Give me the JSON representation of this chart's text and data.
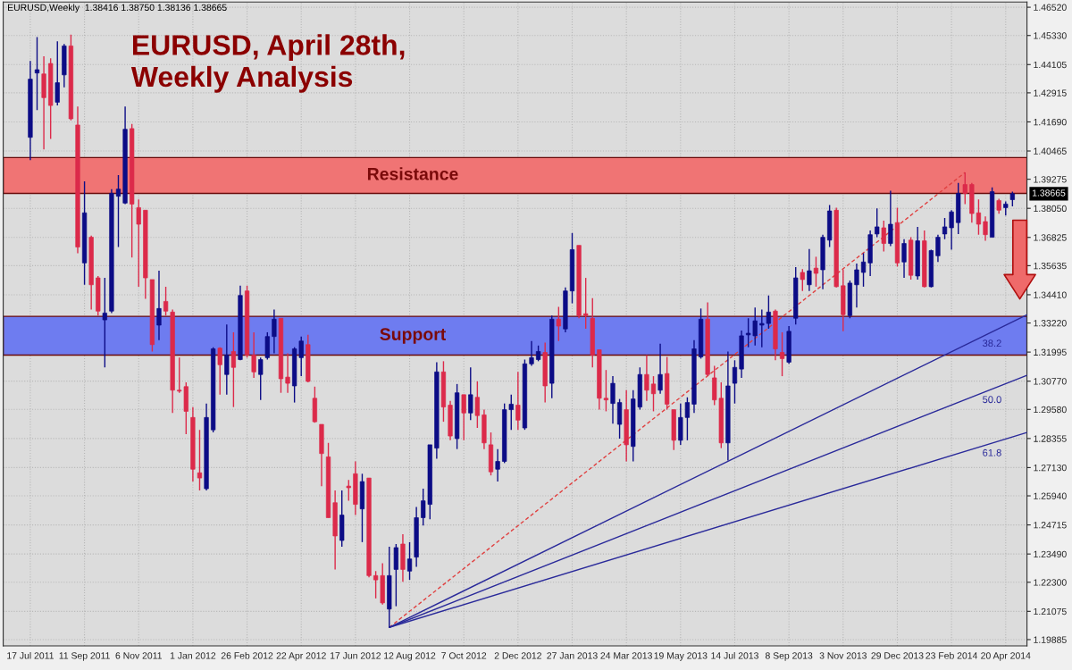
{
  "chart_data": {
    "type": "candlestick",
    "title": "EURUSD, April 28th,\nWeekly Analysis",
    "annotations": [
      "EURUSD,Weekly  1.38416 1.38750 1.38136 1.38665",
      "1.38665"
    ],
    "x": [
      "2011-07-17",
      "2011-07-24",
      "2011-07-31",
      "2011-08-07",
      "2011-08-14",
      "2011-08-21",
      "2011-08-28",
      "2011-09-04",
      "2011-09-11",
      "2011-09-18",
      "2011-09-25",
      "2011-10-02",
      "2011-10-09",
      "2011-10-16",
      "2011-10-23",
      "2011-10-30",
      "2011-11-06",
      "2011-11-13",
      "2011-11-20",
      "2011-11-27",
      "2011-12-04",
      "2011-12-11",
      "2011-12-18",
      "2011-12-25",
      "2012-01-01",
      "2012-01-08",
      "2012-01-15",
      "2012-01-22",
      "2012-01-29",
      "2012-02-05",
      "2012-02-12",
      "2012-02-19",
      "2012-02-26",
      "2012-03-04",
      "2012-03-11",
      "2012-03-18",
      "2012-03-25",
      "2012-04-01",
      "2012-04-08",
      "2012-04-15",
      "2012-04-22",
      "2012-04-29",
      "2012-05-06",
      "2012-05-13",
      "2012-05-20",
      "2012-05-27",
      "2012-06-03",
      "2012-06-10",
      "2012-06-17",
      "2012-06-24",
      "2012-07-01",
      "2012-07-08",
      "2012-07-15",
      "2012-07-22",
      "2012-07-29",
      "2012-08-05",
      "2012-08-12",
      "2012-08-19",
      "2012-08-26",
      "2012-09-02",
      "2012-09-09",
      "2012-09-16",
      "2012-09-23",
      "2012-09-30",
      "2012-10-07",
      "2012-10-14",
      "2012-10-21",
      "2012-10-28",
      "2012-11-04",
      "2012-11-11",
      "2012-11-18",
      "2012-11-25",
      "2012-12-02",
      "2012-12-09",
      "2012-12-16",
      "2012-12-23",
      "2012-12-30",
      "2013-01-06",
      "2013-01-13",
      "2013-01-20",
      "2013-01-27",
      "2013-02-03",
      "2013-02-10",
      "2013-02-17",
      "2013-02-24",
      "2013-03-03",
      "2013-03-10",
      "2013-03-17",
      "2013-03-24",
      "2013-03-31",
      "2013-04-07",
      "2013-04-14",
      "2013-04-21",
      "2013-04-28",
      "2013-05-05",
      "2013-05-12",
      "2013-05-19",
      "2013-05-26",
      "2013-06-02",
      "2013-06-09",
      "2013-06-16",
      "2013-06-23",
      "2013-06-30",
      "2013-07-07",
      "2013-07-14",
      "2013-07-21",
      "2013-07-28",
      "2013-08-04",
      "2013-08-11",
      "2013-08-18",
      "2013-08-25",
      "2013-09-01",
      "2013-09-08",
      "2013-09-15",
      "2013-09-22",
      "2013-09-29",
      "2013-10-06",
      "2013-10-13",
      "2013-10-20",
      "2013-10-27",
      "2013-11-03",
      "2013-11-10",
      "2013-11-17",
      "2013-11-24",
      "2013-12-01",
      "2013-12-08",
      "2013-12-15",
      "2013-12-22",
      "2013-12-29",
      "2014-01-05",
      "2014-01-12",
      "2014-01-19",
      "2014-01-26",
      "2014-02-02",
      "2014-02-09",
      "2014-02-16",
      "2014-02-23",
      "2014-03-02",
      "2014-03-09",
      "2014-03-16",
      "2014-03-23",
      "2014-03-30",
      "2014-04-06",
      "2014-04-13",
      "2014-04-20",
      "2014-04-27"
    ],
    "ohlc": [
      [
        1.4104,
        1.4426,
        1.4008,
        1.4349
      ],
      [
        1.4375,
        1.4526,
        1.4219,
        1.4389
      ],
      [
        1.4371,
        1.4445,
        1.4053,
        1.4271
      ],
      [
        1.4415,
        1.4437,
        1.4097,
        1.4238
      ],
      [
        1.4252,
        1.4508,
        1.4238,
        1.4334
      ],
      [
        1.4367,
        1.4497,
        1.4315,
        1.4489
      ],
      [
        1.4489,
        1.4537,
        1.4175,
        1.4182
      ],
      [
        1.4156,
        1.4234,
        1.3616,
        1.3642
      ],
      [
        1.3575,
        1.3919,
        1.3483,
        1.3786
      ],
      [
        1.3683,
        1.369,
        1.3379,
        1.3483
      ],
      [
        1.3512,
        1.352,
        1.3353,
        1.3372
      ],
      [
        1.3335,
        1.3512,
        1.3135,
        1.3364
      ],
      [
        1.3372,
        1.3886,
        1.3364,
        1.3868
      ],
      [
        1.3856,
        1.3945,
        1.3642,
        1.3886
      ],
      [
        1.3827,
        1.4234,
        1.3823,
        1.4138
      ],
      [
        1.4141,
        1.416,
        1.3598,
        1.3823
      ],
      [
        1.3808,
        1.3842,
        1.3475,
        1.3738
      ],
      [
        1.3797,
        1.3797,
        1.3424,
        1.3512
      ],
      [
        1.3505,
        1.3505,
        1.3202,
        1.3231
      ],
      [
        1.3313,
        1.3542,
        1.325,
        1.3383
      ],
      [
        1.3413,
        1.3475,
        1.3353,
        1.3372
      ],
      [
        1.3368,
        1.3379,
        1.2943,
        1.3039
      ],
      [
        1.3039,
        1.3176,
        1.3028,
        1.3035
      ],
      [
        1.3054,
        1.3072,
        1.2854,
        1.295
      ],
      [
        1.2924,
        1.2968,
        1.2654,
        1.2706
      ],
      [
        1.2691,
        1.2872,
        1.2617,
        1.2669
      ],
      [
        1.2624,
        1.2983,
        1.2617,
        1.2924
      ],
      [
        1.2872,
        1.322,
        1.2861,
        1.3213
      ],
      [
        1.3216,
        1.322,
        1.302,
        1.3146
      ],
      [
        1.3105,
        1.3316,
        1.302,
        1.3187
      ],
      [
        1.3202,
        1.3283,
        1.2968,
        1.3135
      ],
      [
        1.3168,
        1.3479,
        1.3165,
        1.3438
      ],
      [
        1.3457,
        1.3479,
        1.3176,
        1.3187
      ],
      [
        1.3187,
        1.3283,
        1.3091,
        1.3116
      ],
      [
        1.3105,
        1.3176,
        1.2998,
        1.3168
      ],
      [
        1.3176,
        1.3283,
        1.3168,
        1.3265
      ],
      [
        1.3265,
        1.3379,
        1.3194,
        1.3338
      ],
      [
        1.3342,
        1.3342,
        1.3028,
        1.3087
      ],
      [
        1.3094,
        1.3194,
        1.3028,
        1.3068
      ],
      [
        1.3057,
        1.322,
        1.2987,
        1.3213
      ],
      [
        1.3176,
        1.3265,
        1.3098,
        1.3246
      ],
      [
        1.3231,
        1.3272,
        1.3072,
        1.3076
      ],
      [
        1.3005,
        1.3054,
        1.2902,
        1.2906
      ],
      [
        1.2895,
        1.2895,
        1.2635,
        1.2772
      ],
      [
        1.2758,
        1.2817,
        1.2502,
        1.2502
      ],
      [
        1.2565,
        1.2617,
        1.2284,
        1.2425
      ],
      [
        1.2406,
        1.2617,
        1.238,
        1.2513
      ],
      [
        1.2635,
        1.2661,
        1.2573,
        1.2628
      ],
      [
        1.2687,
        1.2739,
        1.2513,
        1.2558
      ],
      [
        1.2539,
        1.2687,
        1.2399,
        1.2654
      ],
      [
        1.2669,
        1.2669,
        1.2251,
        1.2258
      ],
      [
        1.2258,
        1.2277,
        1.2162,
        1.224
      ],
      [
        1.2258,
        1.231,
        1.2136,
        1.2143
      ],
      [
        1.2117,
        1.238,
        1.204,
        1.2258
      ],
      [
        1.2284,
        1.2391,
        1.2129,
        1.2376
      ],
      [
        1.2391,
        1.2432,
        1.2232,
        1.2284
      ],
      [
        1.2277,
        1.2399,
        1.224,
        1.2328
      ],
      [
        1.2336,
        1.2547,
        1.2295,
        1.2502
      ],
      [
        1.2502,
        1.2624,
        1.2469,
        1.2573
      ],
      [
        1.2558,
        1.2809,
        1.2495,
        1.2809
      ],
      [
        1.2795,
        1.3157,
        1.275,
        1.3116
      ],
      [
        1.3116,
        1.3161,
        1.2906,
        1.2968
      ],
      [
        1.2976,
        1.2994,
        1.2828,
        1.2846
      ],
      [
        1.2835,
        1.3065,
        1.2791,
        1.3028
      ],
      [
        1.302,
        1.302,
        1.2828,
        1.2943
      ],
      [
        1.2943,
        1.3135,
        1.2913,
        1.302
      ],
      [
        1.3009,
        1.3076,
        1.288,
        1.2932
      ],
      [
        1.2935,
        1.2957,
        1.2791,
        1.2817
      ],
      [
        1.2809,
        1.2861,
        1.268,
        1.2695
      ],
      [
        1.2706,
        1.2791,
        1.2654,
        1.2739
      ],
      [
        1.2739,
        1.2983,
        1.2732,
        1.2957
      ],
      [
        1.2957,
        1.302,
        1.2872,
        1.298
      ],
      [
        1.2976,
        1.3116,
        1.2872,
        1.2913
      ],
      [
        1.288,
        1.3168,
        1.2872,
        1.315
      ],
      [
        1.315,
        1.3246,
        1.3142,
        1.3176
      ],
      [
        1.3168,
        1.3227,
        1.3161,
        1.3202
      ],
      [
        1.3198,
        1.3239,
        1.2987,
        1.3057
      ],
      [
        1.3068,
        1.3353,
        1.3005,
        1.3338
      ],
      [
        1.3338,
        1.339,
        1.3246,
        1.3309
      ],
      [
        1.3297,
        1.3472,
        1.3283,
        1.3457
      ],
      [
        1.3457,
        1.3701,
        1.3405,
        1.3631
      ],
      [
        1.3649,
        1.3649,
        1.3342,
        1.3353
      ],
      [
        1.3361,
        1.3512,
        1.3298,
        1.3353
      ],
      [
        1.3342,
        1.3427,
        1.3135,
        1.3187
      ],
      [
        1.3209,
        1.3209,
        1.2957,
        1.3005
      ],
      [
        1.3005,
        1.3124,
        1.295,
        1.2998
      ],
      [
        1.2983,
        1.3098,
        1.2898,
        1.3068
      ],
      [
        1.2895,
        1.3002,
        1.2835,
        1.2987
      ],
      [
        1.2957,
        1.3039,
        1.2739,
        1.2809
      ],
      [
        1.2802,
        1.3039,
        1.2739,
        1.3002
      ],
      [
        1.2968,
        1.3135,
        1.2957,
        1.3105
      ],
      [
        1.3105,
        1.3187,
        1.2994,
        1.3039
      ],
      [
        1.3065,
        1.3098,
        1.295,
        1.3024
      ],
      [
        1.3039,
        1.3235,
        1.3024,
        1.3105
      ],
      [
        1.3109,
        1.3179,
        1.2957,
        1.298
      ],
      [
        1.2957,
        1.2957,
        1.2787,
        1.2828
      ],
      [
        1.2828,
        1.2983,
        1.2809,
        1.2924
      ],
      [
        1.2924,
        1.3009,
        1.2828,
        1.2987
      ],
      [
        1.298,
        1.325,
        1.2943,
        1.3213
      ],
      [
        1.3179,
        1.3383,
        1.3172,
        1.3338
      ],
      [
        1.3338,
        1.3409,
        1.3098,
        1.3105
      ],
      [
        1.3091,
        1.3142,
        1.2976,
        1.2998
      ],
      [
        1.3005,
        1.3072,
        1.2795,
        1.2817
      ],
      [
        1.2817,
        1.3202,
        1.2743,
        1.3057
      ],
      [
        1.3068,
        1.3165,
        1.2983,
        1.3135
      ],
      [
        1.3128,
        1.329,
        1.3091,
        1.3268
      ],
      [
        1.3272,
        1.3342,
        1.322,
        1.3279
      ],
      [
        1.3268,
        1.3387,
        1.3227,
        1.3331
      ],
      [
        1.3313,
        1.3379,
        1.322,
        1.332
      ],
      [
        1.332,
        1.3438,
        1.3298,
        1.3368
      ],
      [
        1.3372,
        1.3379,
        1.3165,
        1.3213
      ],
      [
        1.3198,
        1.3283,
        1.3098,
        1.3172
      ],
      [
        1.3157,
        1.3309,
        1.315,
        1.3287
      ],
      [
        1.3342,
        1.3557,
        1.3316,
        1.3512
      ],
      [
        1.3535,
        1.3549,
        1.3457,
        1.3505
      ],
      [
        1.3483,
        1.3634,
        1.3457,
        1.3542
      ],
      [
        1.3553,
        1.3601,
        1.3475,
        1.3531
      ],
      [
        1.3546,
        1.3694,
        1.3464,
        1.3683
      ],
      [
        1.3671,
        1.3819,
        1.3642,
        1.3794
      ],
      [
        1.3797,
        1.3808,
        1.3472,
        1.3475
      ],
      [
        1.3479,
        1.3546,
        1.3287,
        1.3357
      ],
      [
        1.3353,
        1.3501,
        1.3342,
        1.349
      ],
      [
        1.3483,
        1.3572,
        1.3387,
        1.3546
      ],
      [
        1.3535,
        1.3616,
        1.3475,
        1.3579
      ],
      [
        1.3575,
        1.3712,
        1.352,
        1.3694
      ],
      [
        1.3697,
        1.3805,
        1.3683,
        1.3727
      ],
      [
        1.3723,
        1.3753,
        1.3623,
        1.3657
      ],
      [
        1.3657,
        1.3879,
        1.3646,
        1.3738
      ],
      [
        1.3745,
        1.3808,
        1.356,
        1.3575
      ],
      [
        1.3579,
        1.3675,
        1.3512,
        1.3657
      ],
      [
        1.3671,
        1.3683,
        1.3505,
        1.3523
      ],
      [
        1.352,
        1.3727,
        1.3505,
        1.3668
      ],
      [
        1.3668,
        1.3712,
        1.3472,
        1.3475
      ],
      [
        1.3475,
        1.3631,
        1.3472,
        1.3627
      ],
      [
        1.3605,
        1.3694,
        1.3579,
        1.3683
      ],
      [
        1.3697,
        1.3764,
        1.3675,
        1.3727
      ],
      [
        1.3723,
        1.3797,
        1.3631,
        1.379
      ],
      [
        1.3745,
        1.3912,
        1.3697,
        1.3868
      ],
      [
        1.3905,
        1.3956,
        1.3823,
        1.3868
      ],
      [
        1.3905,
        1.3912,
        1.3745,
        1.3783
      ],
      [
        1.3786,
        1.3842,
        1.3694,
        1.3738
      ],
      [
        1.3749,
        1.3771,
        1.3668,
        1.3694
      ],
      [
        1.3683,
        1.3893,
        1.3683,
        1.3875
      ],
      [
        1.3838,
        1.3845,
        1.3782,
        1.3797
      ],
      [
        1.3808,
        1.3834,
        1.3775,
        1.3823
      ],
      [
        1.38416,
        1.3875,
        1.38136,
        1.38665
      ]
    ],
    "colors": [
      "#0c0c86",
      "#0c0c86",
      "#dc2a4a",
      "#dc2a4a",
      "#0c0c86",
      "#0c0c86",
      "#dc2a4a",
      "#dc2a4a",
      "#0c0c86",
      "#dc2a4a",
      "#dc2a4a",
      "#0c0c86",
      "#0c0c86",
      "#0c0c86",
      "#0c0c86",
      "#dc2a4a",
      "#dc2a4a",
      "#dc2a4a",
      "#dc2a4a",
      "#0c0c86",
      "#dc2a4a",
      "#dc2a4a",
      "#dc2a4a",
      "#dc2a4a",
      "#dc2a4a",
      "#dc2a4a",
      "#0c0c86",
      "#0c0c86",
      "#dc2a4a",
      "#0c0c86",
      "#dc2a4a",
      "#0c0c86",
      "#dc2a4a",
      "#dc2a4a",
      "#0c0c86",
      "#0c0c86",
      "#0c0c86",
      "#dc2a4a",
      "#dc2a4a",
      "#0c0c86",
      "#0c0c86",
      "#dc2a4a",
      "#dc2a4a",
      "#dc2a4a",
      "#dc2a4a",
      "#dc2a4a",
      "#0c0c86",
      "#dc2a4a",
      "#dc2a4a",
      "#0c0c86",
      "#dc2a4a",
      "#dc2a4a",
      "#dc2a4a",
      "#0c0c86",
      "#0c0c86",
      "#dc2a4a",
      "#0c0c86",
      "#0c0c86",
      "#0c0c86",
      "#0c0c86",
      "#0c0c86",
      "#dc2a4a",
      "#dc2a4a",
      "#0c0c86",
      "#dc2a4a",
      "#0c0c86",
      "#dc2a4a",
      "#dc2a4a",
      "#dc2a4a",
      "#0c0c86",
      "#0c0c86",
      "#0c0c86",
      "#dc2a4a",
      "#0c0c86",
      "#0c0c86",
      "#0c0c86",
      "#dc2a4a",
      "#0c0c86",
      "#dc2a4a",
      "#0c0c86",
      "#0c0c86",
      "#dc2a4a",
      "#dc2a4a",
      "#dc2a4a",
      "#dc2a4a",
      "#dc2a4a",
      "#0c0c86",
      "#0c0c86",
      "#dc2a4a",
      "#0c0c86",
      "#0c0c86",
      "#dc2a4a",
      "#dc2a4a",
      "#0c0c86",
      "#dc2a4a",
      "#dc2a4a",
      "#0c0c86",
      "#0c0c86",
      "#0c0c86",
      "#0c0c86",
      "#dc2a4a",
      "#dc2a4a",
      "#dc2a4a",
      "#0c0c86",
      "#0c0c86",
      "#0c0c86",
      "#0c0c86",
      "#0c0c86",
      "#0c0c86",
      "#0c0c86",
      "#dc2a4a",
      "#dc2a4a",
      "#0c0c86",
      "#0c0c86",
      "#dc2a4a",
      "#0c0c86",
      "#dc2a4a",
      "#0c0c86",
      "#0c0c86",
      "#dc2a4a",
      "#dc2a4a",
      "#0c0c86",
      "#0c0c86",
      "#0c0c86",
      "#0c0c86",
      "#0c0c86",
      "#dc2a4a",
      "#0c0c86",
      "#dc2a4a",
      "#0c0c86",
      "#dc2a4a",
      "#0c0c86",
      "#dc2a4a",
      "#0c0c86",
      "#0c0c86",
      "#0c0c86",
      "#0c0c86",
      "#0c0c86",
      "#dc2a4a",
      "#dc2a4a",
      "#dc2a4a",
      "#dc2a4a",
      "#0c0c86",
      "#dc2a4a",
      "#0c0c86",
      "#0c0c86"
    ],
    "series": [
      {
        "type": "line",
        "x": [
          "2012-07-22",
          "2014-03-09"
        ],
        "values": [
          1.204,
          1.3956
        ],
        "color": "#e04040",
        "line_style": "dashed"
      },
      {
        "type": "line",
        "name": "38.2",
        "x": [
          "2012-07-22",
          "2014-05-12"
        ],
        "values": [
          1.204,
          1.3357
        ],
        "color": "#2a2a9a",
        "line_style": "solid"
      },
      {
        "type": "line",
        "name": "50.0",
        "x": [
          "2012-07-22",
          "2014-05-12"
        ],
        "values": [
          1.204,
          1.3102
        ],
        "color": "#2a2a9a",
        "line_style": "solid"
      },
      {
        "type": "line",
        "name": "61.8",
        "x": [
          "2012-07-22",
          "2014-05-12"
        ],
        "values": [
          1.204,
          1.2861
        ],
        "color": "#2a2a9a",
        "line_style": "solid"
      }
    ],
    "bands": [
      {
        "axis": "y",
        "from": 1.3868,
        "to": 1.4019,
        "label": "Resistance",
        "color": "#f07474"
      },
      {
        "axis": "y",
        "from": 1.3187,
        "to": 1.335,
        "label": "Support",
        "color": "#6e7cf0"
      }
    ],
    "xlim": [
      "2011-06-19",
      "2014-05-12"
    ],
    "xticks": [
      {
        "value": "2011-07-17",
        "label": "17 Jul 2011"
      },
      {
        "value": "2011-09-11",
        "label": "11 Sep 2011"
      },
      {
        "value": "2011-11-06",
        "label": "6 Nov 2011"
      },
      {
        "value": "2012-01-01",
        "label": "1 Jan 2012"
      },
      {
        "value": "2012-02-26",
        "label": "26 Feb 2012"
      },
      {
        "value": "2012-04-22",
        "label": "22 Apr 2012"
      },
      {
        "value": "2012-06-17",
        "label": "17 Jun 2012"
      },
      {
        "value": "2012-08-12",
        "label": "12 Aug 2012"
      },
      {
        "value": "2012-10-07",
        "label": "7 Oct 2012"
      },
      {
        "value": "2012-12-02",
        "label": "2 Dec 2012"
      },
      {
        "value": "2013-01-27",
        "label": "27 Jan 2013"
      },
      {
        "value": "2013-03-24",
        "label": "24 Mar 2013"
      },
      {
        "value": "2013-05-19",
        "label": "19 May 2013"
      },
      {
        "value": "2013-07-14",
        "label": "14 Jul 2013"
      },
      {
        "value": "2013-09-08",
        "label": "8 Sep 2013"
      },
      {
        "value": "2013-11-03",
        "label": "3 Nov 2013"
      },
      {
        "value": "2013-12-29",
        "label": "29 Dec 2013"
      },
      {
        "value": "2014-02-23",
        "label": "23 Feb 2014"
      },
      {
        "value": "2014-04-20",
        "label": "20 Apr 2014"
      }
    ],
    "ylim": [
      1.1962,
      1.4674
    ],
    "yticks": [
      {
        "value": 1.4652,
        "label": "1.46520"
      },
      {
        "value": 1.4533,
        "label": "1.45330"
      },
      {
        "value": 1.44105,
        "label": "1.44105"
      },
      {
        "value": 1.42915,
        "label": "1.42915"
      },
      {
        "value": 1.4169,
        "label": "1.41690"
      },
      {
        "value": 1.40465,
        "label": "1.40465"
      },
      {
        "value": 1.39275,
        "label": "1.39275"
      },
      {
        "value": 1.3805,
        "label": "1.38050"
      },
      {
        "value": 1.36825,
        "label": "1.36825"
      },
      {
        "value": 1.35635,
        "label": "1.35635"
      },
      {
        "value": 1.3441,
        "label": "1.34410"
      },
      {
        "value": 1.3322,
        "label": "1.33220"
      },
      {
        "value": 1.31995,
        "label": "1.31995"
      },
      {
        "value": 1.3077,
        "label": "1.30770"
      },
      {
        "value": 1.2958,
        "label": "1.29580"
      },
      {
        "value": 1.28355,
        "label": "1.28355"
      },
      {
        "value": 1.2713,
        "label": "1.27130"
      },
      {
        "value": 1.2594,
        "label": "1.25940"
      },
      {
        "value": 1.24715,
        "label": "1.24715"
      },
      {
        "value": 1.2349,
        "label": "1.23490"
      },
      {
        "value": 1.223,
        "label": "1.22300"
      },
      {
        "value": 1.21075,
        "label": "1.21075"
      },
      {
        "value": 1.19885,
        "label": "1.19885"
      }
    ],
    "grid": true
  }
}
